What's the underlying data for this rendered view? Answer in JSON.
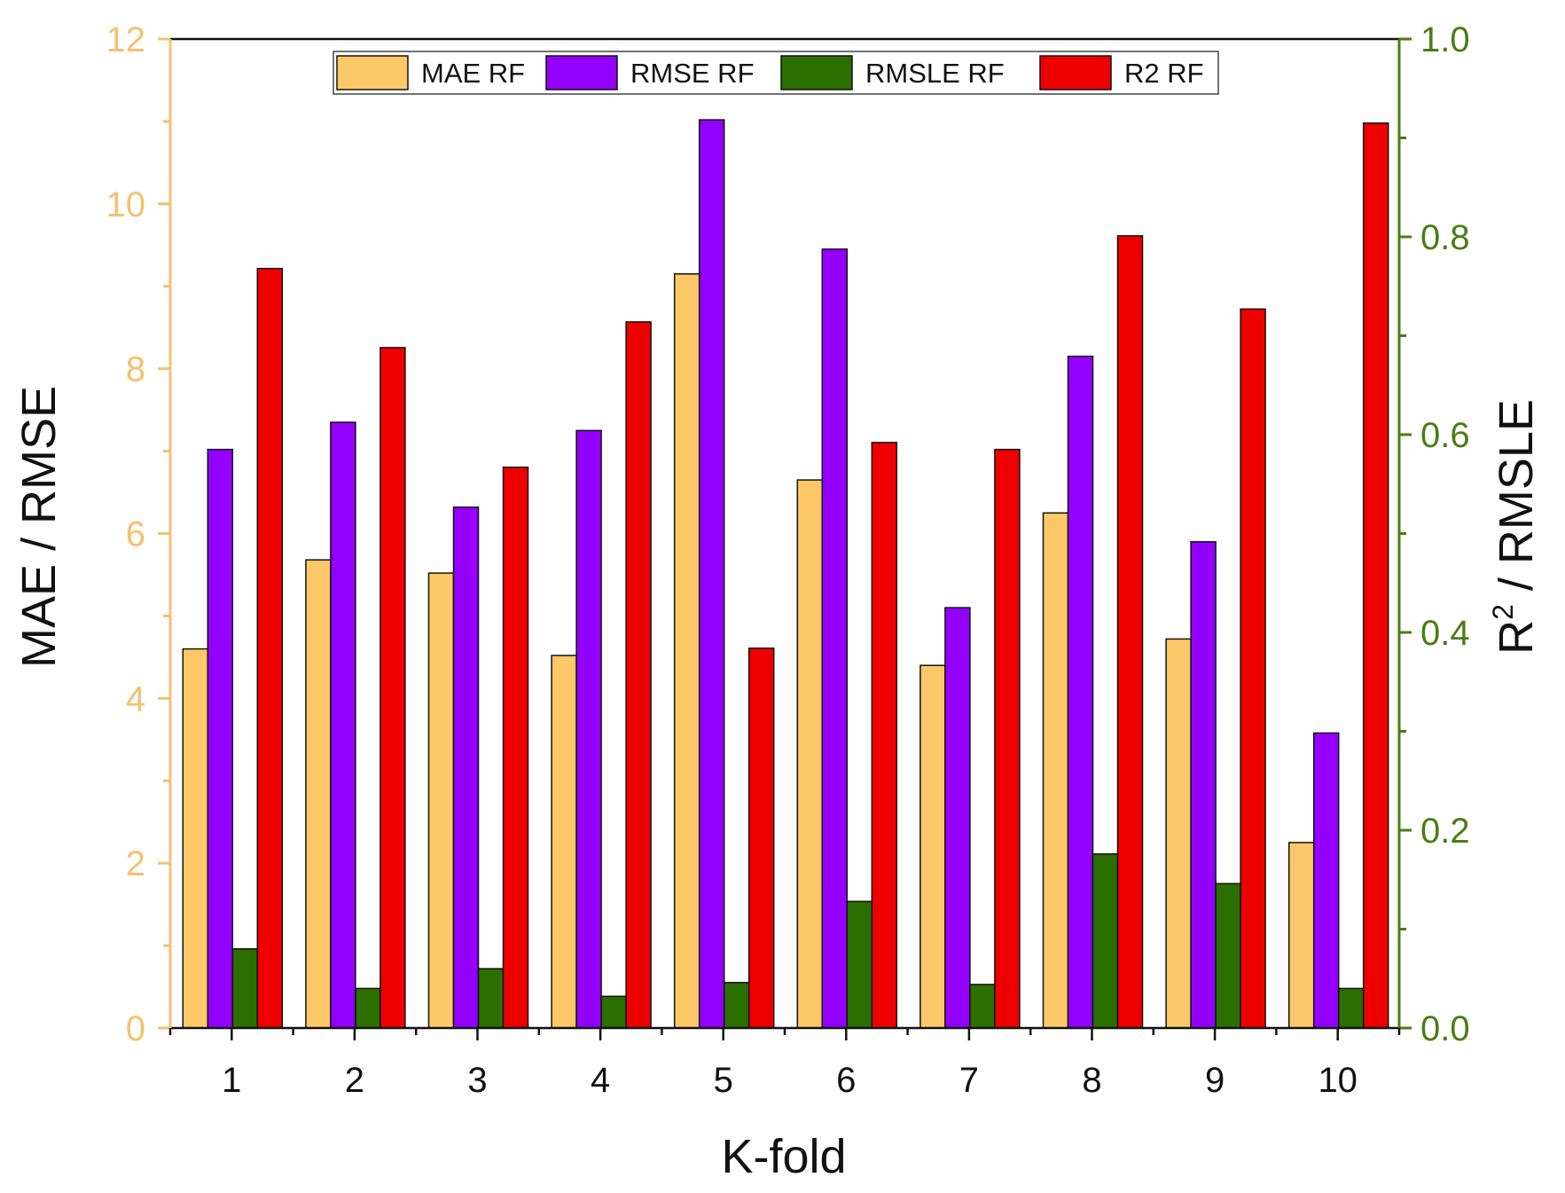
{
  "chart_data": {
    "type": "bar",
    "xlabel": "K-fold",
    "ylabel_left": "MAE / RMSE",
    "ylabel_right_base": "R",
    "ylabel_right_sup": "2",
    "ylabel_right_rest": " / RMSLE",
    "categories": [
      "1",
      "2",
      "3",
      "4",
      "5",
      "6",
      "7",
      "8",
      "9",
      "10"
    ],
    "ylim_left": [
      0,
      12
    ],
    "ylim_right": [
      0,
      1.0
    ],
    "yticks_left": [
      "0",
      "2",
      "4",
      "6",
      "8",
      "10",
      "12"
    ],
    "yticks_right": [
      "0.0",
      "0.2",
      "0.4",
      "0.6",
      "0.8",
      "1.0"
    ],
    "legend_position": "top-center",
    "series": [
      {
        "name": "MAE RF",
        "axis": "left",
        "color": "#FDC867",
        "values": [
          4.6,
          5.68,
          5.52,
          4.52,
          9.15,
          6.65,
          4.4,
          6.25,
          4.72,
          2.25
        ]
      },
      {
        "name": "RMSE RF",
        "axis": "left",
        "color": "#9400FF",
        "values": [
          7.02,
          7.35,
          6.32,
          7.25,
          11.02,
          9.45,
          5.1,
          8.15,
          5.9,
          3.58
        ]
      },
      {
        "name": "RMSLE RF",
        "axis": "right",
        "color": "#2A6F00",
        "values": [
          0.08,
          0.04,
          0.06,
          0.032,
          0.046,
          0.128,
          0.044,
          0.176,
          0.146,
          0.04
        ]
      },
      {
        "name": "R2 RF",
        "axis": "right",
        "color": "#EE0000",
        "values": [
          0.768,
          0.688,
          0.567,
          0.714,
          0.384,
          0.592,
          0.585,
          0.801,
          0.727,
          0.915
        ]
      }
    ],
    "colors": {
      "left_axis": "#F5C070",
      "right_axis": "#4A7D14",
      "frame": "#111111"
    }
  }
}
